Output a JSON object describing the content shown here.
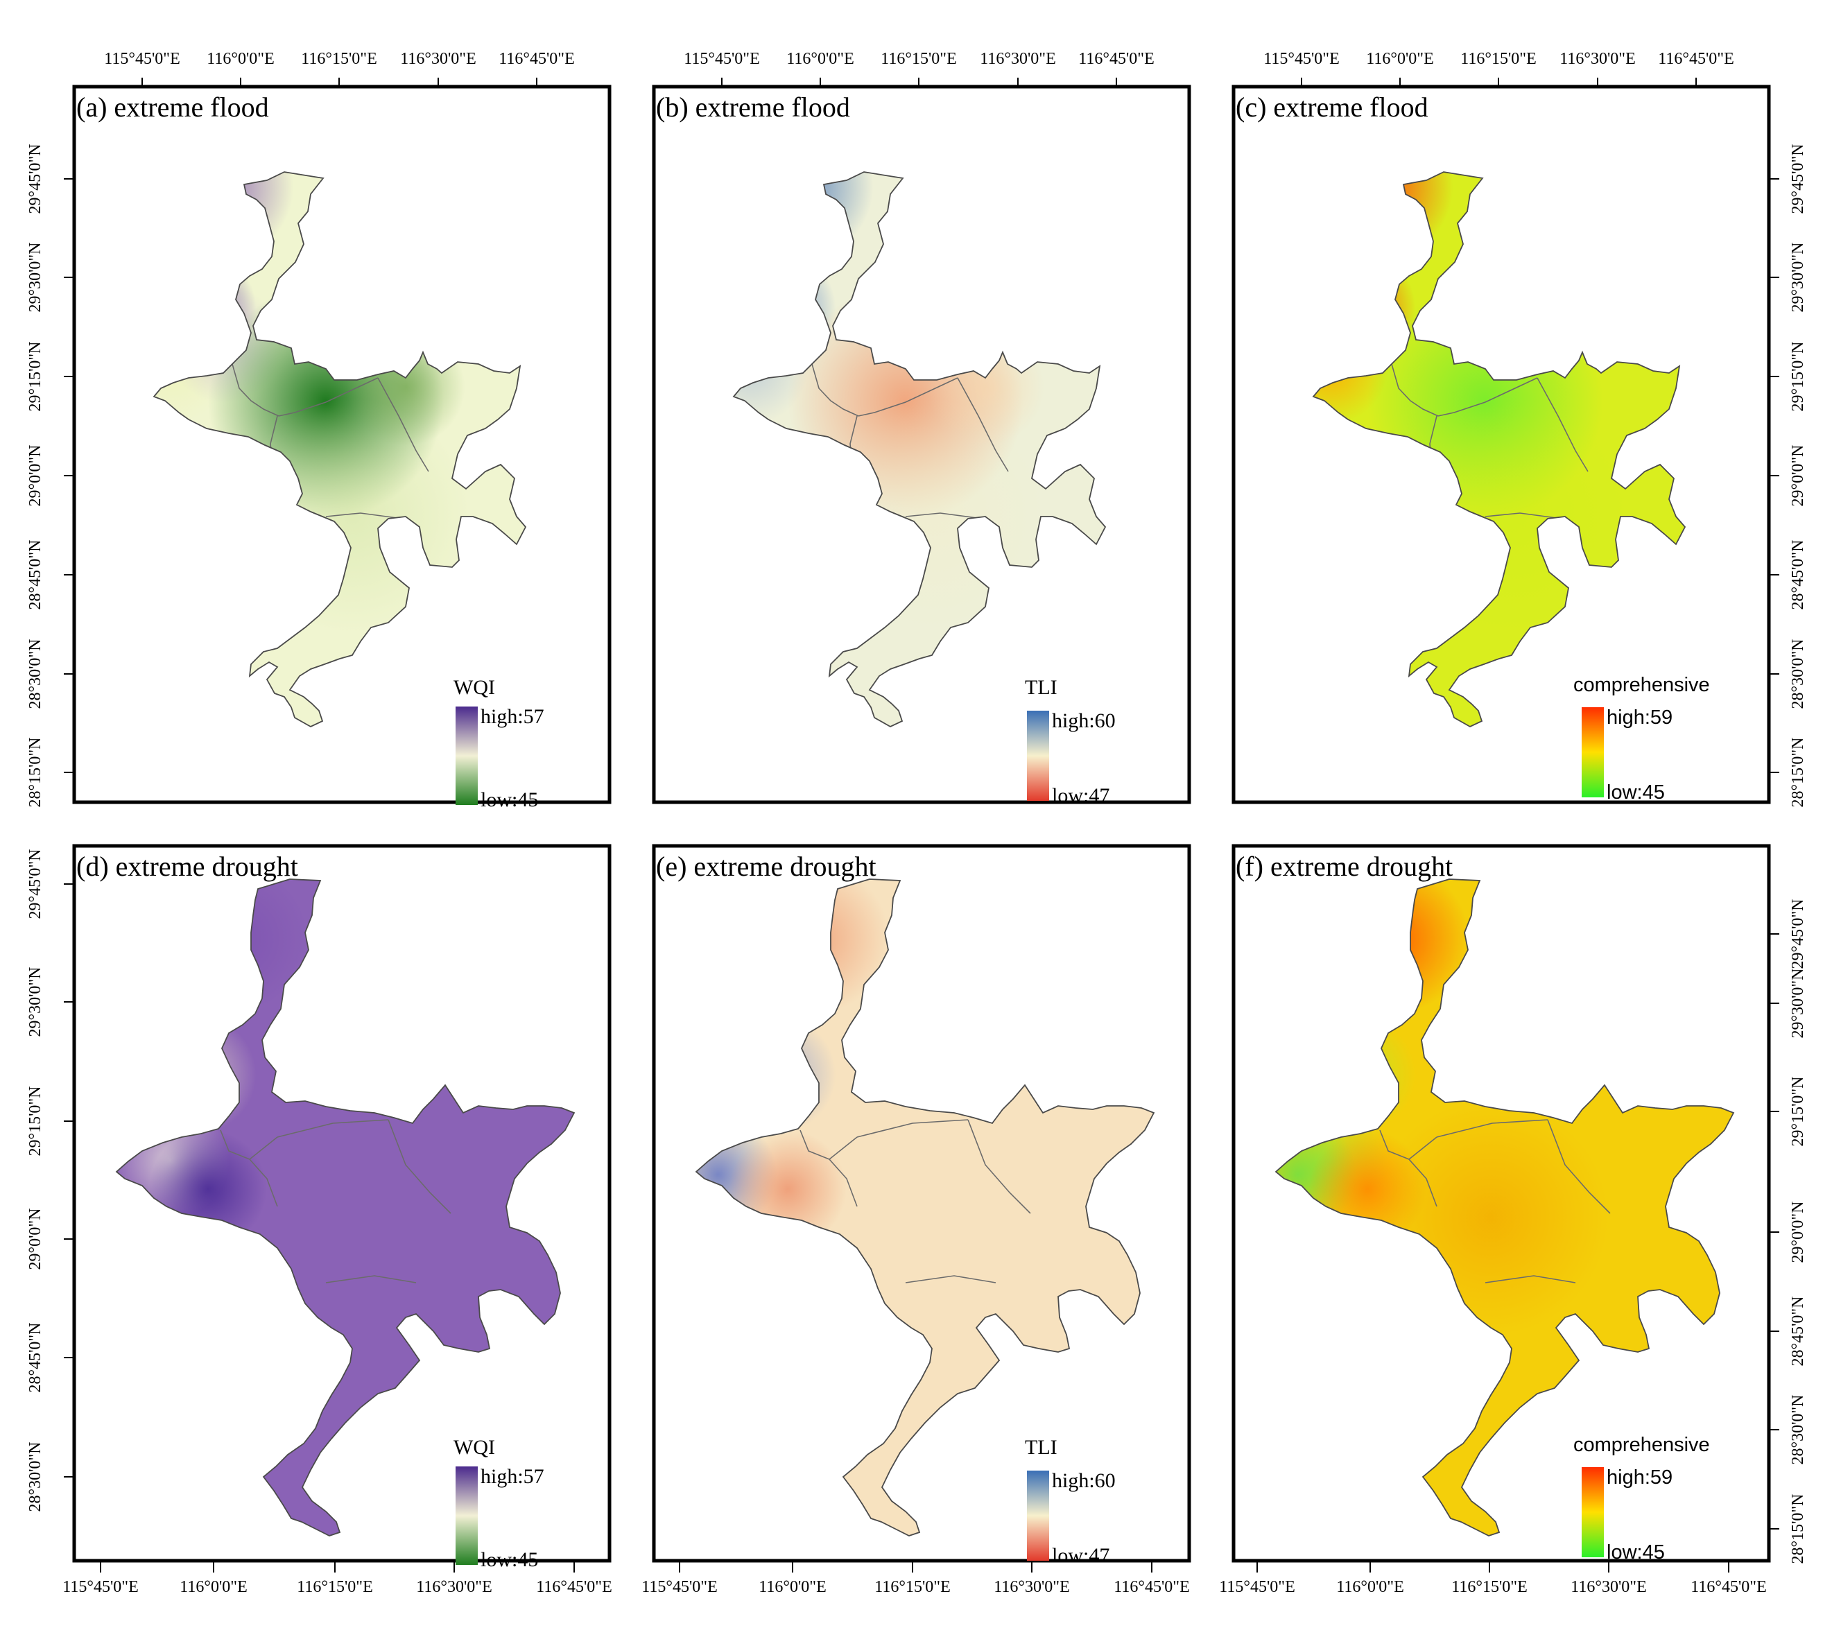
{
  "figure": {
    "color_schemes": {
      "WQI": {
        "high": "#4b2a8d",
        "mid": "#f2f0d5",
        "low": "#1f7d1f"
      },
      "TLI": {
        "high": "#3a6fb5",
        "mid": "#f7f0cc",
        "low": "#e23a2b"
      },
      "comprehensive": {
        "high": "#ff2d00",
        "mid": "#ffe000",
        "low": "#29ef29"
      }
    },
    "panels": [
      {
        "id": "a",
        "title": "(a) extreme flood",
        "index": "WQI",
        "legend": {
          "title": "WQI",
          "high": "high:57",
          "low": "low:45"
        },
        "base_fill": "#f0f5d0",
        "hotspots": [
          {
            "name": "north-channel",
            "color": "#8a63b3",
            "strength": 0.9
          },
          {
            "name": "north-bay",
            "color": "#5c35a0",
            "strength": 0.95
          },
          {
            "name": "west-lake",
            "color": "#eef3b8",
            "strength": 0.8
          },
          {
            "name": "west-purple",
            "color": "#c7b2d6",
            "strength": 0.6
          },
          {
            "name": "central-lake",
            "color": "#1f7a1f",
            "strength": 1.0
          },
          {
            "name": "east-lobe",
            "color": "#74a84e",
            "strength": 0.7
          },
          {
            "name": "south-body",
            "color": "#cfe39f",
            "strength": 0.5
          }
        ]
      },
      {
        "id": "b",
        "title": "(b) extreme flood",
        "index": "TLI",
        "legend": {
          "title": "TLI",
          "high": "high:60",
          "low": "low:47"
        },
        "base_fill": "#eef0d8",
        "hotspots": [
          {
            "name": "north-channel",
            "color": "#5f86bd",
            "strength": 1.0
          },
          {
            "name": "north-bay",
            "color": "#4b77c4",
            "strength": 0.9
          },
          {
            "name": "west-lake",
            "color": "#b7c7d6",
            "strength": 0.8
          },
          {
            "name": "central-lake",
            "color": "#f1a37a",
            "strength": 0.95
          },
          {
            "name": "east-lobe",
            "color": "#f8d3a8",
            "strength": 0.6
          },
          {
            "name": "south-body",
            "color": "#f3ecc8",
            "strength": 0.4
          }
        ]
      },
      {
        "id": "c",
        "title": "(c) extreme flood",
        "index": "comprehensive",
        "legend": {
          "title": "comprehensive",
          "high": "high:59",
          "low": "low:45"
        },
        "base_fill": "#d9ee1e",
        "hotspots": [
          {
            "name": "north-channel",
            "color": "#ff4a0a",
            "strength": 1.0
          },
          {
            "name": "north-bay",
            "color": "#ff3a00",
            "strength": 0.95
          },
          {
            "name": "west-lake",
            "color": "#ffa800",
            "strength": 0.9
          },
          {
            "name": "central-lake",
            "color": "#74ec2c",
            "strength": 0.9
          },
          {
            "name": "south-body",
            "color": "#cfee1a",
            "strength": 0.5
          }
        ]
      },
      {
        "id": "d",
        "title": "(d) extreme drought",
        "index": "WQI",
        "legend": {
          "title": "WQI",
          "high": "high:57",
          "low": "low:45"
        },
        "base_fill": "#8a62b6",
        "hotspots": [
          {
            "name": "north-channel",
            "color": "#7a4fb0",
            "strength": 0.7
          },
          {
            "name": "north-bay",
            "color": "#ded1c7",
            "strength": 0.8
          },
          {
            "name": "west-lake",
            "color": "#f2eedf",
            "strength": 0.7
          },
          {
            "name": "junction",
            "color": "#4a2b96",
            "strength": 0.9
          }
        ]
      },
      {
        "id": "e",
        "title": "(e) extreme drought",
        "index": "TLI",
        "legend": {
          "title": "TLI",
          "high": "high:60",
          "low": "low:47"
        },
        "base_fill": "#f7e2bf",
        "hotspots": [
          {
            "name": "north-channel",
            "color": "#f0a47c",
            "strength": 0.9
          },
          {
            "name": "north-bay",
            "color": "#8f9fd0",
            "strength": 0.8
          },
          {
            "name": "west-lake",
            "color": "#f6f1d0",
            "strength": 0.7
          },
          {
            "name": "west-blue",
            "color": "#5a6fc5",
            "strength": 0.8
          },
          {
            "name": "junction",
            "color": "#ee9a74",
            "strength": 0.9
          }
        ]
      },
      {
        "id": "f",
        "title": "(f) extreme drought",
        "index": "comprehensive",
        "legend": {
          "title": "comprehensive",
          "high": "high:59",
          "low": "low:45"
        },
        "base_fill": "#f4cf0a",
        "hotspots": [
          {
            "name": "north-channel",
            "color": "#ff6400",
            "strength": 1.0
          },
          {
            "name": "north-bay",
            "color": "#b8e82a",
            "strength": 0.8
          },
          {
            "name": "west-lake",
            "color": "#b3e62e",
            "strength": 0.8
          },
          {
            "name": "west-green",
            "color": "#57e14d",
            "strength": 0.7
          },
          {
            "name": "junction",
            "color": "#ff8a00",
            "strength": 0.9
          },
          {
            "name": "central-lake",
            "color": "#f3a800",
            "strength": 0.7
          }
        ]
      }
    ],
    "axes": {
      "top_row": {
        "lon_top": [
          "115°45'0\"E",
          "116°0'0\"E",
          "116°15'0\"E",
          "116°30'0\"E",
          "116°45'0\"E"
        ],
        "lat_left": [
          "29°45'0\"N",
          "29°30'0\"N",
          "29°15'0\"N",
          "29°0'0\"N",
          "28°45'0\"N",
          "28°30'0\"N",
          "28°15'0\"N"
        ],
        "lat_right": [
          "29°45'0\"N",
          "29°30'0\"N",
          "29°15'0\"N",
          "29°0'0\"N",
          "28°45'0\"N",
          "28°30'0\"N",
          "28°15'0\"N"
        ]
      },
      "bottom_row": {
        "lon_bottom": [
          "115°45'0\"E",
          "116°0'0\"E",
          "116°15'0\"E",
          "116°30'0\"E",
          "116°45'0\"E"
        ],
        "lat_left": [
          "29°45'0\"N",
          "29°30'0\"N",
          "29°15'0\"N",
          "29°0'0\"N",
          "28°45'0\"N",
          "28°30'0\"N"
        ],
        "lat_right": [
          "29°45'0\"N",
          "29°30'0\"N",
          "29°15'0\"N",
          "29°0'0\"N",
          "28°45'0\"N",
          "28°30'0\"N",
          "28°15'0\"N"
        ]
      }
    }
  }
}
